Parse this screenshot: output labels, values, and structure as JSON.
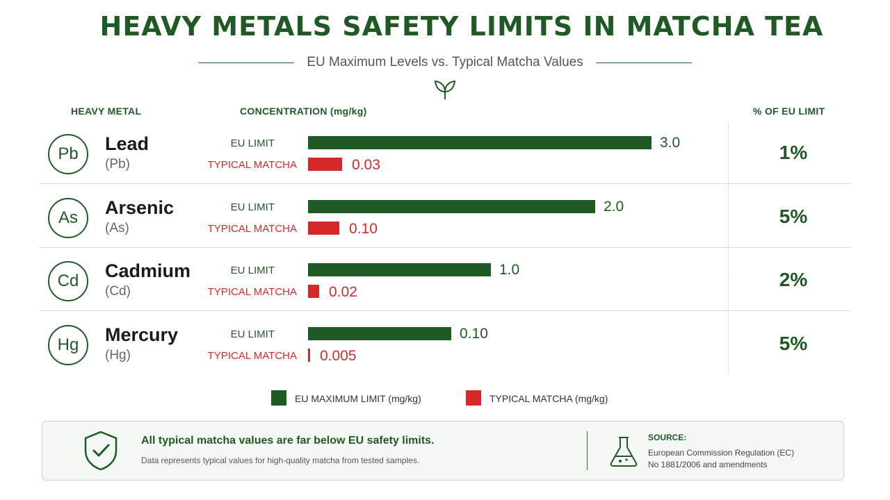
{
  "title": "HEAVY METALS SAFETY LIMITS IN MATCHA TEA",
  "subtitle": "EU Maximum Levels vs. Typical Matcha Values",
  "columns": {
    "metal": "HEAVY METAL",
    "concentration": "CONCENTRATION (mg/kg)",
    "percent": "% OF EU LIMIT"
  },
  "labels": {
    "eu": "EU LIMIT",
    "typical": "TYPICAL MATCHA"
  },
  "colors": {
    "eu": "#1f5a24",
    "typical": "#d72828"
  },
  "icons": {
    "header": "leaf-icon",
    "footer_left": "shield-check-icon",
    "footer_right": "flask-icon"
  },
  "chart_data": {
    "type": "bar",
    "categories": [
      "Lead",
      "Arsenic",
      "Cadmium",
      "Mercury"
    ],
    "series": [
      {
        "name": "EU MAXIMUM LIMIT (mg/kg)",
        "values": [
          3.0,
          2.0,
          1.0,
          0.1
        ],
        "labels": [
          "3.0",
          "2.0",
          "1.0",
          "0.10"
        ]
      },
      {
        "name": "TYPICAL MATCHA (mg/kg)",
        "values": [
          0.03,
          0.1,
          0.02,
          0.005
        ],
        "labels": [
          "0.03",
          "0.10",
          "0.02",
          "0.005"
        ]
      }
    ],
    "metals": [
      {
        "name": "Lead",
        "symbol": "Pb",
        "symbol_paren": "(Pb)",
        "percent": "1%"
      },
      {
        "name": "Arsenic",
        "symbol": "As",
        "symbol_paren": "(As)",
        "percent": "5%"
      },
      {
        "name": "Cadmium",
        "symbol": "Cd",
        "symbol_paren": "(Cd)",
        "percent": "2%"
      },
      {
        "name": "Mercury",
        "symbol": "Hg",
        "symbol_paren": "(Hg)",
        "percent": "5%"
      }
    ],
    "legend": [
      "EU MAXIMUM LIMIT (mg/kg)",
      "TYPICAL MATCHA (mg/kg)"
    ],
    "legend_position": "bottom"
  },
  "footer": {
    "main": "All typical matcha values are far below EU safety limits.",
    "sub": "Data represents typical values for high-quality matcha from tested samples.",
    "source_head": "SOURCE:",
    "source_line1": "European Commission Regulation (EC)",
    "source_line2": "No 1881/2006 and amendments"
  }
}
